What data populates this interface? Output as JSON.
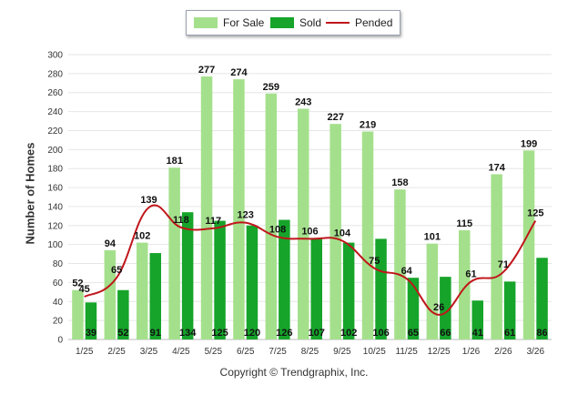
{
  "legend": {
    "for_sale_label": "For Sale",
    "sold_label": "Sold",
    "pended_label": "Pended"
  },
  "copyright": "Copyright © Trendgraphix, Inc.",
  "colors": {
    "for_sale": "#a4e08c",
    "sold": "#16a42a",
    "pended": "#c0161b",
    "grid": "#e6e6e6"
  },
  "chart_data": {
    "type": "bar",
    "ylabel": "Number of Homes",
    "ylim": [
      0,
      300
    ],
    "yticks": [
      0,
      20,
      40,
      60,
      80,
      100,
      120,
      140,
      160,
      180,
      200,
      220,
      240,
      260,
      280,
      300
    ],
    "grid": true,
    "legend_position": "top",
    "categories": [
      "1/25",
      "2/25",
      "3/25",
      "4/25",
      "5/25",
      "6/25",
      "7/25",
      "8/25",
      "9/25",
      "10/25",
      "11/25",
      "12/25",
      "1/26",
      "2/26",
      "3/26"
    ],
    "series": [
      {
        "name": "For Sale",
        "type": "bar",
        "values": [
          52,
          94,
          102,
          181,
          277,
          274,
          259,
          243,
          227,
          219,
          158,
          101,
          115,
          174,
          199
        ]
      },
      {
        "name": "Sold",
        "type": "bar",
        "values": [
          39,
          52,
          91,
          134,
          125,
          120,
          126,
          107,
          102,
          106,
          65,
          66,
          41,
          61,
          86
        ]
      },
      {
        "name": "Pended",
        "type": "line",
        "values": [
          45,
          65,
          139,
          118,
          117,
          123,
          108,
          106,
          104,
          75,
          64,
          26,
          61,
          71,
          125
        ]
      }
    ]
  }
}
